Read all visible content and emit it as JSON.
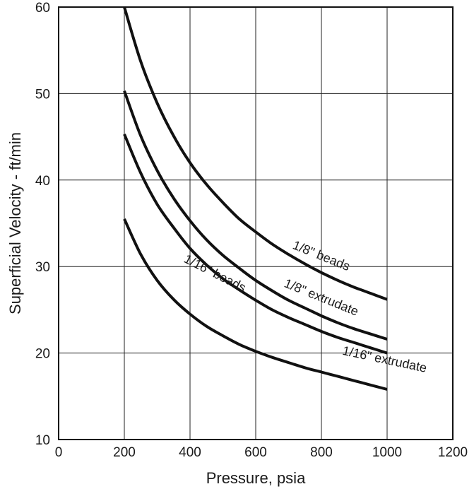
{
  "chart_data": {
    "type": "line",
    "title": "",
    "xlabel": "Pressure, psia",
    "ylabel": "Superficial Velocity - ft/min",
    "xlim": [
      0,
      1200
    ],
    "ylim": [
      10,
      60
    ],
    "xticks": [
      0,
      200,
      400,
      600,
      800,
      1000,
      1200
    ],
    "yticks": [
      10,
      20,
      30,
      40,
      50,
      60
    ],
    "grid": true,
    "legend": "none",
    "series": [
      {
        "name": "1/8\" beads",
        "x": [
          200,
          250,
          300,
          350,
          400,
          450,
          500,
          550,
          600,
          650,
          700,
          750,
          800,
          850,
          900,
          950,
          1000
        ],
        "y": [
          60.0,
          53.7,
          48.9,
          45.1,
          42.0,
          39.5,
          37.4,
          35.5,
          34.0,
          32.6,
          31.4,
          30.3,
          29.3,
          28.4,
          27.6,
          26.9,
          26.2
        ]
      },
      {
        "name": "1/8\" extrudate",
        "x": [
          200,
          250,
          300,
          350,
          400,
          450,
          500,
          550,
          600,
          650,
          700,
          750,
          800,
          850,
          900,
          950,
          1000
        ],
        "y": [
          50.3,
          45.1,
          41.1,
          37.9,
          35.3,
          33.1,
          31.3,
          29.8,
          28.4,
          27.2,
          26.1,
          25.2,
          24.3,
          23.5,
          22.8,
          22.2,
          21.6
        ]
      },
      {
        "name": "1/16\" beads",
        "x": [
          200,
          250,
          300,
          350,
          400,
          450,
          500,
          550,
          600,
          650,
          700,
          750,
          800,
          850,
          900,
          950,
          1000
        ],
        "y": [
          45.3,
          40.8,
          37.2,
          34.5,
          32.1,
          30.2,
          28.6,
          27.3,
          26.1,
          25.0,
          24.1,
          23.3,
          22.5,
          21.8,
          21.2,
          20.6,
          20.0
        ]
      },
      {
        "name": "1/16\" extrudate",
        "x": [
          200,
          250,
          300,
          350,
          400,
          450,
          500,
          550,
          600,
          650,
          700,
          750,
          800,
          850,
          900,
          950,
          1000
        ],
        "y": [
          35.5,
          31.4,
          28.4,
          26.2,
          24.5,
          23.1,
          22.0,
          21.0,
          20.2,
          19.5,
          18.9,
          18.3,
          17.8,
          17.3,
          16.8,
          16.3,
          15.8
        ]
      }
    ],
    "annotations": [
      {
        "text": "1/8\" beads",
        "x": 795,
        "y": 30.8,
        "angle": 22
      },
      {
        "text": "1/8\" extrudate",
        "x": 795,
        "y": 26.0,
        "angle": 22
      },
      {
        "text": "1/16\" beads",
        "x": 470,
        "y": 28.8,
        "angle": 27
      },
      {
        "text": "1/16\" extrudate",
        "x": 990,
        "y": 18.8,
        "angle": 12
      }
    ]
  }
}
